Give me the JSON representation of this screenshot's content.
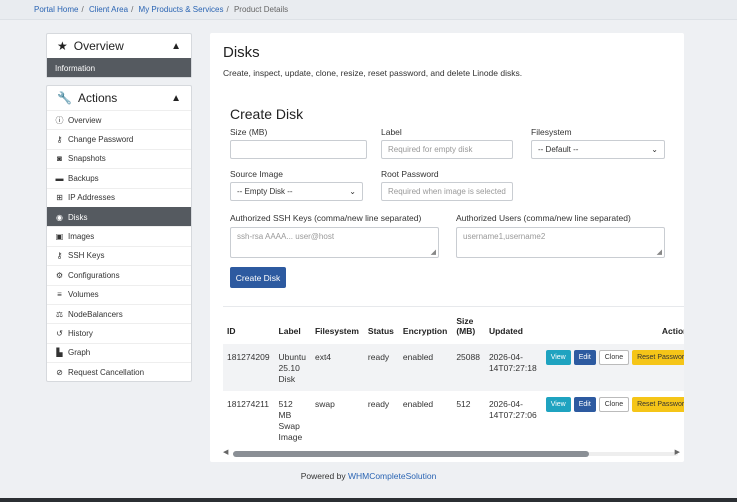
{
  "breadcrumb": {
    "items": [
      "Portal Home",
      "Client Area",
      "My Products & Services"
    ],
    "current": "Product Details"
  },
  "sidebar": {
    "overview_panel": {
      "title": "Overview",
      "items": [
        {
          "label": "Information",
          "active": true
        }
      ]
    },
    "actions_panel": {
      "title": "Actions",
      "items": [
        {
          "label": "Overview",
          "icon": "info-circle-icon"
        },
        {
          "label": "Change Password",
          "icon": "key-icon"
        },
        {
          "label": "Snapshots",
          "icon": "camera-icon"
        },
        {
          "label": "Backups",
          "icon": "hdd-icon"
        },
        {
          "label": "IP Addresses",
          "icon": "network-icon"
        },
        {
          "label": "Disks",
          "icon": "disk-icon",
          "active": true
        },
        {
          "label": "Images",
          "icon": "image-icon"
        },
        {
          "label": "SSH Keys",
          "icon": "key-icon"
        },
        {
          "label": "Configurations",
          "icon": "cogs-icon"
        },
        {
          "label": "Volumes",
          "icon": "database-icon"
        },
        {
          "label": "NodeBalancers",
          "icon": "balance-scale-icon"
        },
        {
          "label": "History",
          "icon": "history-icon"
        },
        {
          "label": "Graph",
          "icon": "chart-icon"
        },
        {
          "label": "Request Cancellation",
          "icon": "ban-icon"
        }
      ]
    }
  },
  "main": {
    "title": "Disks",
    "subtitle": "Create, inspect, update, clone, resize, reset password, and delete Linode disks.",
    "create": {
      "title": "Create Disk",
      "size_label": "Size (MB)",
      "size_value": "",
      "label_label": "Label",
      "label_placeholder": "Required for empty disk",
      "filesystem_label": "Filesystem",
      "filesystem_value": "-- Default --",
      "source_label": "Source Image",
      "source_value": "-- Empty Disk --",
      "root_label": "Root Password",
      "root_placeholder": "Required when image is selected",
      "ssh_label": "Authorized SSH Keys (comma/new line separated)",
      "ssh_placeholder": "ssh-rsa AAAA... user@host",
      "users_label": "Authorized Users (comma/new line separated)",
      "users_placeholder": "username1,username2",
      "button": "Create Disk"
    },
    "table": {
      "headers": [
        "ID",
        "Label",
        "Filesystem",
        "Status",
        "Encryption",
        "Size (MB)",
        "Updated",
        "Actions"
      ],
      "rows": [
        {
          "id": "181274209",
          "label": "Ubuntu 25.10 Disk",
          "filesystem": "ext4",
          "status": "ready",
          "encryption": "enabled",
          "size": "25088",
          "updated": "2026-04-14T07:27:18"
        },
        {
          "id": "181274211",
          "label": "512 MB Swap Image",
          "filesystem": "swap",
          "status": "ready",
          "encryption": "enabled",
          "size": "512",
          "updated": "2026-04-14T07:27:06"
        }
      ],
      "actions": {
        "view": "View",
        "edit": "Edit",
        "clone": "Clone",
        "reset": "Reset Password"
      }
    }
  },
  "footer": {
    "text": "Powered by",
    "link": "WHMCompleteSolution"
  }
}
